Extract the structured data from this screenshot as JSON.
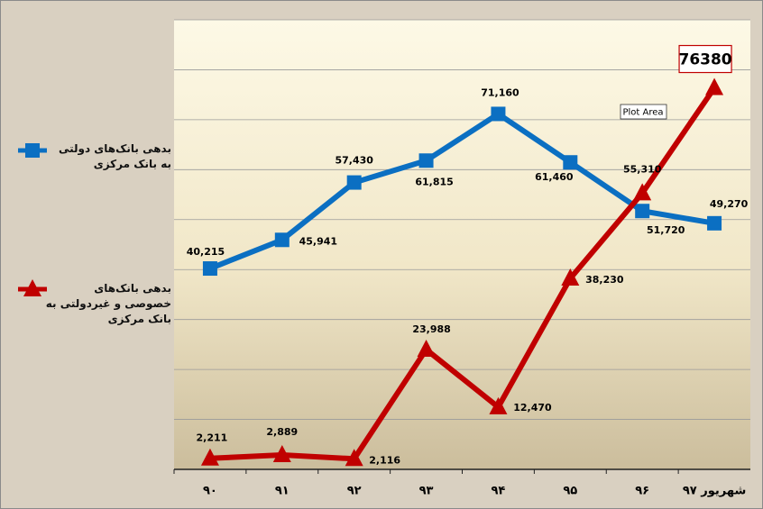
{
  "chart_data": {
    "type": "line",
    "categories": [
      "۹۰",
      "۹۱",
      "۹۲",
      "۹۳",
      "۹۴",
      "۹۵",
      "۹۶",
      "شهریور ۹۷"
    ],
    "series": [
      {
        "name": "بدهی بانک‌های دولتی به بانک مرکزی",
        "color": "#0b6fc2",
        "marker": "square",
        "values": [
          40215,
          45941,
          57430,
          61815,
          71160,
          61460,
          51720,
          49270
        ],
        "value_labels": [
          "40,215",
          "45,941",
          "57,430",
          "61,815",
          "71,160",
          "61,460",
          "51,720",
          "49,270"
        ]
      },
      {
        "name": "بدهی بانک‌های خصوصی و غیردولتی به بانک مرکزی",
        "color": "#c00000",
        "marker": "triangle",
        "values": [
          2211,
          2889,
          2116,
          23988,
          12470,
          38230,
          55310,
          76380
        ],
        "value_labels": [
          "2,211",
          "2,889",
          "2,116",
          "23,988",
          "12,470",
          "38,230",
          "55,310",
          "76380"
        ]
      }
    ],
    "ylim": [
      0,
      90000
    ],
    "yticks": [
      0,
      10000,
      20000,
      30000,
      40000,
      50000,
      60000,
      70000,
      80000,
      90000
    ],
    "grid": true,
    "annotation": "Plot Area"
  }
}
